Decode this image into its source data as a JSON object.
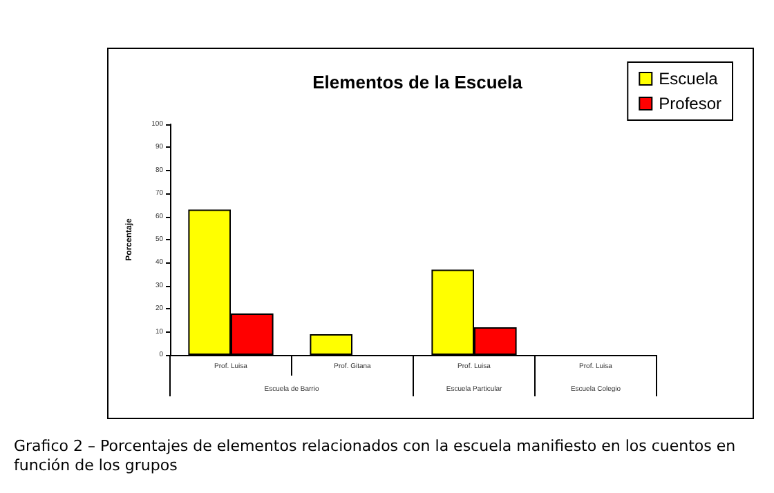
{
  "chart_data": {
    "type": "bar",
    "title": "Elementos de la Escuela",
    "ylabel": "Porcentaje",
    "categories": [
      "Prof. Luisa",
      "Prof. Gitana",
      "Prof. Luisa",
      "Prof. Luisa"
    ],
    "series": [
      {
        "name": "Escuela",
        "color": "#ffff00",
        "values": [
          63,
          9,
          37,
          null
        ]
      },
      {
        "name": "Profesor",
        "color": "#ff0000",
        "values": [
          18,
          null,
          12,
          null
        ]
      }
    ],
    "ylim": [
      0,
      100
    ],
    "yticks": [
      0,
      10,
      20,
      30,
      40,
      50,
      60,
      70,
      80,
      90,
      100
    ],
    "grid": false,
    "legend": "top right",
    "annotations": [
      "Escuela de Barrio",
      "Escuela Particular",
      "Escuela Colegio",
      "Grafico 2 – Porcentajes de elementos relacionados con la escuela manifiesto en los cuentos en función de los grupos"
    ]
  }
}
